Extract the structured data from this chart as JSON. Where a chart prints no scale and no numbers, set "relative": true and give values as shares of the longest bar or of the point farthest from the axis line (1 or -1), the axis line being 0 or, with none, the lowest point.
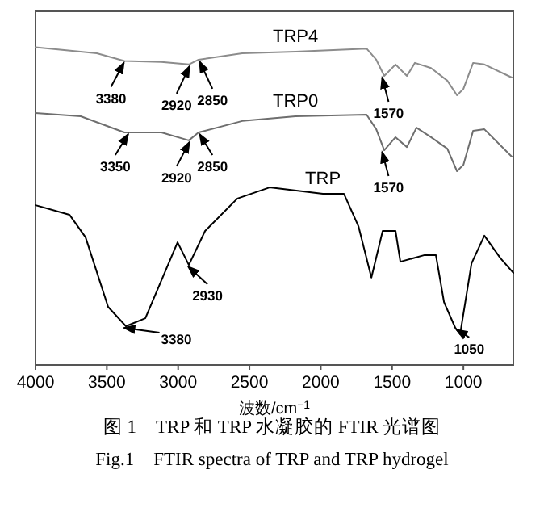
{
  "chart_data": {
    "type": "line",
    "relative": true,
    "xlabel": "波数/cm$^{−1}$",
    "xlim": [
      4000,
      650
    ],
    "xticks": [
      4000,
      3500,
      3000,
      2500,
      2000,
      1500,
      1000
    ],
    "legend": false,
    "grid": false,
    "series": [
      {
        "name": "TRP4",
        "color": "#8c8c8c",
        "x": [
          4000,
          3570,
          3377,
          3117,
          2925,
          2857,
          2551,
          2177,
          1679,
          1611,
          1555,
          1476,
          1396,
          1340,
          1227,
          1113,
          1045,
          1000,
          932,
          853,
          661
        ],
        "values": [
          1.0,
          0.981,
          0.957,
          0.954,
          0.946,
          0.961,
          0.981,
          0.986,
          0.996,
          0.961,
          0.91,
          0.946,
          0.91,
          0.951,
          0.935,
          0.895,
          0.849,
          0.869,
          0.951,
          0.946,
          0.905
        ]
      },
      {
        "name": "TRP0",
        "color": "#6e6e6e",
        "x": [
          4000,
          3683,
          3377,
          3117,
          2925,
          2857,
          2551,
          2177,
          1679,
          1611,
          1555,
          1476,
          1396,
          1329,
          1227,
          1113,
          1045,
          1000,
          932,
          853,
          661
        ],
        "values": [
          0.793,
          0.783,
          0.732,
          0.732,
          0.707,
          0.732,
          0.768,
          0.783,
          0.788,
          0.742,
          0.676,
          0.717,
          0.686,
          0.747,
          0.717,
          0.681,
          0.61,
          0.63,
          0.737,
          0.742,
          0.656
        ]
      },
      {
        "name": "TRP",
        "color": "#000000",
        "x": [
          4000,
          3762,
          3649,
          3491,
          3366,
          3230,
          3004,
          2925,
          2811,
          2585,
          2359,
          1985,
          1838,
          1736,
          1645,
          1566,
          1476,
          1442,
          1272,
          1193,
          1136,
          1057,
          1023,
          943,
          853,
          740,
          650
        ],
        "values": [
          0.503,
          0.473,
          0.402,
          0.183,
          0.122,
          0.147,
          0.386,
          0.315,
          0.422,
          0.524,
          0.559,
          0.539,
          0.539,
          0.437,
          0.275,
          0.422,
          0.422,
          0.325,
          0.346,
          0.346,
          0.198,
          0.117,
          0.097,
          0.32,
          0.407,
          0.336,
          0.29
        ]
      }
    ],
    "annotations": [
      {
        "text": "3380",
        "x": 3380,
        "y": 0.957
      },
      {
        "text": "2920",
        "x": 2920,
        "y": 0.946
      },
      {
        "text": "2850",
        "x": 2850,
        "y": 0.961
      },
      {
        "text": "1570",
        "x": 1570,
        "y": 0.91
      },
      {
        "text": "3350",
        "x": 3350,
        "y": 0.732
      },
      {
        "text": "2920",
        "x": 2920,
        "y": 0.707
      },
      {
        "text": "2850",
        "x": 2850,
        "y": 0.732
      },
      {
        "text": "1570",
        "x": 1570,
        "y": 0.676
      },
      {
        "text": "2930",
        "x": 2930,
        "y": 0.315
      },
      {
        "text": "3380",
        "x": 3380,
        "y": 0.122
      },
      {
        "text": "1050",
        "x": 1050,
        "y": 0.117
      },
      "图 1　TRP 和 TRP 水凝胶的 FTIR 光谱图",
      "Fig.1　FTIR spectra of TRP and TRP hydrogel"
    ]
  }
}
